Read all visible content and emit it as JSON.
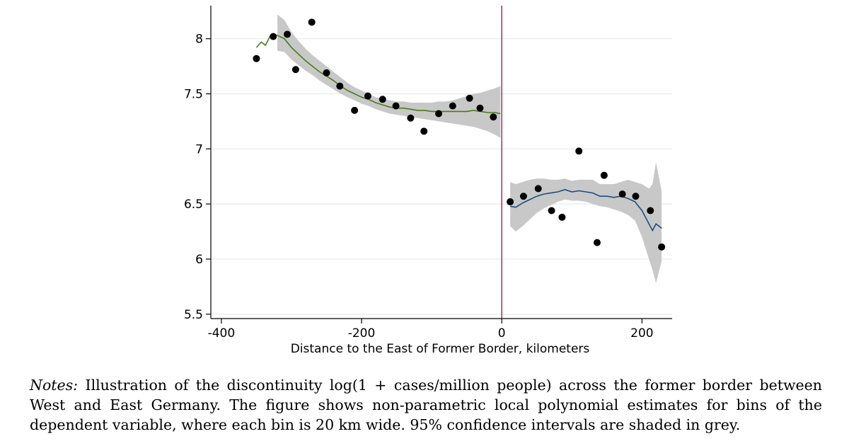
{
  "chart_data": {
    "type": "scatter",
    "xlabel": "Distance to the East of Former Border, kilometers",
    "ylabel": "",
    "xlim": [
      -415,
      243
    ],
    "ylim": [
      5.46,
      8.3
    ],
    "x_ticks": [
      -400,
      -200,
      0,
      200
    ],
    "x_tick_labels": [
      "-400",
      "-200",
      "0",
      "200"
    ],
    "y_ticks": [
      5.5,
      6,
      6.5,
      7,
      7.5,
      8
    ],
    "y_tick_labels": [
      "5.5",
      "6",
      "6.5",
      "7",
      "7.5",
      "8"
    ],
    "grid": "horizontal",
    "cutoff": 0,
    "bins": [
      {
        "x": -350,
        "y": 7.82
      },
      {
        "x": -326,
        "y": 8.02
      },
      {
        "x": -306,
        "y": 8.04
      },
      {
        "x": -294,
        "y": 7.72
      },
      {
        "x": -271,
        "y": 8.15
      },
      {
        "x": -250,
        "y": 7.69
      },
      {
        "x": -231,
        "y": 7.57
      },
      {
        "x": -210,
        "y": 7.35
      },
      {
        "x": -191,
        "y": 7.48
      },
      {
        "x": -170,
        "y": 7.45
      },
      {
        "x": -151,
        "y": 7.39
      },
      {
        "x": -130,
        "y": 7.28
      },
      {
        "x": -111,
        "y": 7.16
      },
      {
        "x": -90,
        "y": 7.32
      },
      {
        "x": -70,
        "y": 7.39
      },
      {
        "x": -46,
        "y": 7.46
      },
      {
        "x": -31,
        "y": 7.37
      },
      {
        "x": -12,
        "y": 7.29
      },
      {
        "x": 12,
        "y": 6.52
      },
      {
        "x": 31,
        "y": 6.57
      },
      {
        "x": 52,
        "y": 6.64
      },
      {
        "x": 71,
        "y": 6.44
      },
      {
        "x": 86,
        "y": 6.38
      },
      {
        "x": 110,
        "y": 6.98
      },
      {
        "x": 136,
        "y": 6.15
      },
      {
        "x": 146,
        "y": 6.76
      },
      {
        "x": 172,
        "y": 6.59
      },
      {
        "x": 191,
        "y": 6.57
      },
      {
        "x": 212,
        "y": 6.44
      },
      {
        "x": 228,
        "y": 6.11
      }
    ],
    "fits": [
      {
        "side": "west",
        "color": "#4a7a1c",
        "x": [
          -350,
          -343,
          -337,
          -330,
          -320,
          -310,
          -300,
          -290,
          -280,
          -270,
          -260,
          -250,
          -240,
          -230,
          -220,
          -210,
          -200,
          -190,
          -180,
          -170,
          -160,
          -150,
          -140,
          -130,
          -120,
          -110,
          -100,
          -90,
          -80,
          -70,
          -60,
          -50,
          -40,
          -30,
          -20,
          -10,
          -2
        ],
        "y": [
          7.92,
          7.97,
          7.94,
          8.03,
          8.03,
          8.0,
          7.92,
          7.86,
          7.8,
          7.75,
          7.7,
          7.66,
          7.62,
          7.57,
          7.53,
          7.5,
          7.47,
          7.45,
          7.42,
          7.4,
          7.38,
          7.37,
          7.37,
          7.36,
          7.35,
          7.35,
          7.34,
          7.34,
          7.34,
          7.34,
          7.34,
          7.34,
          7.35,
          7.34,
          7.33,
          7.33,
          7.32
        ],
        "lo": [
          null,
          null,
          null,
          null,
          7.89,
          7.88,
          7.81,
          7.76,
          7.71,
          7.67,
          7.62,
          7.58,
          7.54,
          7.5,
          7.47,
          7.44,
          7.41,
          7.39,
          7.36,
          7.34,
          7.32,
          7.31,
          7.3,
          7.29,
          7.28,
          7.27,
          7.26,
          7.25,
          7.24,
          7.23,
          7.22,
          7.21,
          7.2,
          7.18,
          7.16,
          7.13,
          7.1
        ],
        "hi": [
          null,
          null,
          null,
          null,
          8.22,
          8.17,
          8.06,
          7.98,
          7.91,
          7.85,
          7.8,
          7.75,
          7.7,
          7.65,
          7.6,
          7.56,
          7.53,
          7.5,
          7.47,
          7.45,
          7.44,
          7.43,
          7.43,
          7.42,
          7.42,
          7.42,
          7.42,
          7.43,
          7.43,
          7.44,
          7.46,
          7.48,
          7.5,
          7.51,
          7.53,
          7.55,
          7.57
        ]
      },
      {
        "side": "east",
        "color": "#1c4e80",
        "x": [
          12,
          20,
          30,
          40,
          50,
          60,
          70,
          80,
          90,
          100,
          110,
          120,
          130,
          140,
          150,
          160,
          170,
          180,
          190,
          200,
          205,
          210,
          215,
          220,
          228
        ],
        "y": [
          6.48,
          6.47,
          6.51,
          6.54,
          6.57,
          6.59,
          6.6,
          6.61,
          6.63,
          6.61,
          6.62,
          6.61,
          6.6,
          6.57,
          6.57,
          6.56,
          6.57,
          6.55,
          6.52,
          6.44,
          6.38,
          6.32,
          6.26,
          6.32,
          6.28
        ],
        "lo": [
          6.3,
          6.25,
          6.3,
          6.36,
          6.42,
          6.46,
          6.49,
          6.52,
          6.54,
          6.53,
          6.53,
          6.52,
          6.5,
          6.48,
          6.47,
          6.45,
          6.43,
          6.4,
          6.35,
          6.2,
          6.1,
          6.0,
          5.9,
          5.78,
          5.98
        ],
        "hi": [
          6.7,
          6.68,
          6.7,
          6.72,
          6.73,
          6.73,
          6.72,
          6.72,
          6.73,
          6.71,
          6.72,
          6.72,
          6.72,
          6.68,
          6.68,
          6.68,
          6.7,
          6.72,
          6.7,
          6.68,
          6.66,
          6.64,
          6.68,
          6.88,
          6.62
        ]
      }
    ]
  },
  "notes": {
    "lead": "Notes:",
    "text": " Illustration of the discontinuity log(1 + cases/million people) across the former border between West and East Germany. The figure shows non-parametric local polynomial estimates for bins of the dependent variable, where each bin is 20 km wide. 95% confidence intervals are shaded in grey."
  },
  "colors": {
    "ci_band": "#c8c8c8",
    "cutoff_line": "#b03a5b",
    "points": "#000000",
    "grid": "#e6ecef"
  }
}
